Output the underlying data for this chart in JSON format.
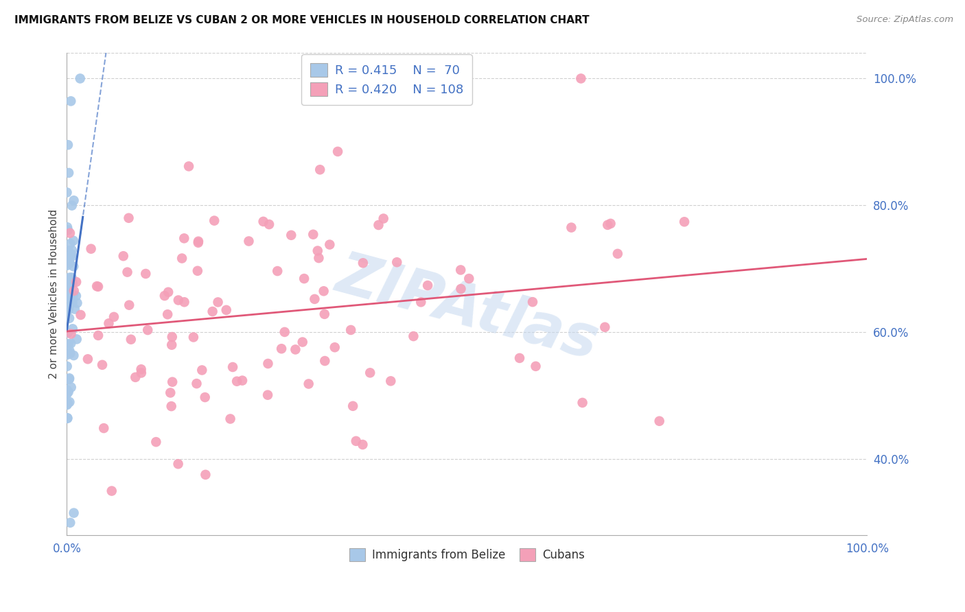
{
  "title": "IMMIGRANTS FROM BELIZE VS CUBAN 2 OR MORE VEHICLES IN HOUSEHOLD CORRELATION CHART",
  "source": "Source: ZipAtlas.com",
  "ylabel": "2 or more Vehicles in Household",
  "belize_R": "0.415",
  "belize_N": "70",
  "cuban_R": "0.420",
  "cuban_N": "108",
  "legend_labels": [
    "Immigrants from Belize",
    "Cubans"
  ],
  "belize_color": "#a8c8e8",
  "belize_line_color": "#4472c4",
  "cuban_color": "#f4a0b8",
  "cuban_line_color": "#e05878",
  "legend_text_color": "#4472c4",
  "watermark": "ZIPAtlas",
  "background_color": "#ffffff",
  "grid_color": "#d0d0d0",
  "xlim": [
    0.0,
    1.0
  ],
  "ylim": [
    0.28,
    1.04
  ],
  "yticks": [
    0.4,
    0.6,
    0.8,
    1.0
  ],
  "ytick_labels": [
    "40.0%",
    "60.0%",
    "80.0%",
    "100.0%"
  ],
  "xticks": [
    0.0,
    1.0
  ],
  "xtick_labels": [
    "0.0%",
    "100.0%"
  ]
}
